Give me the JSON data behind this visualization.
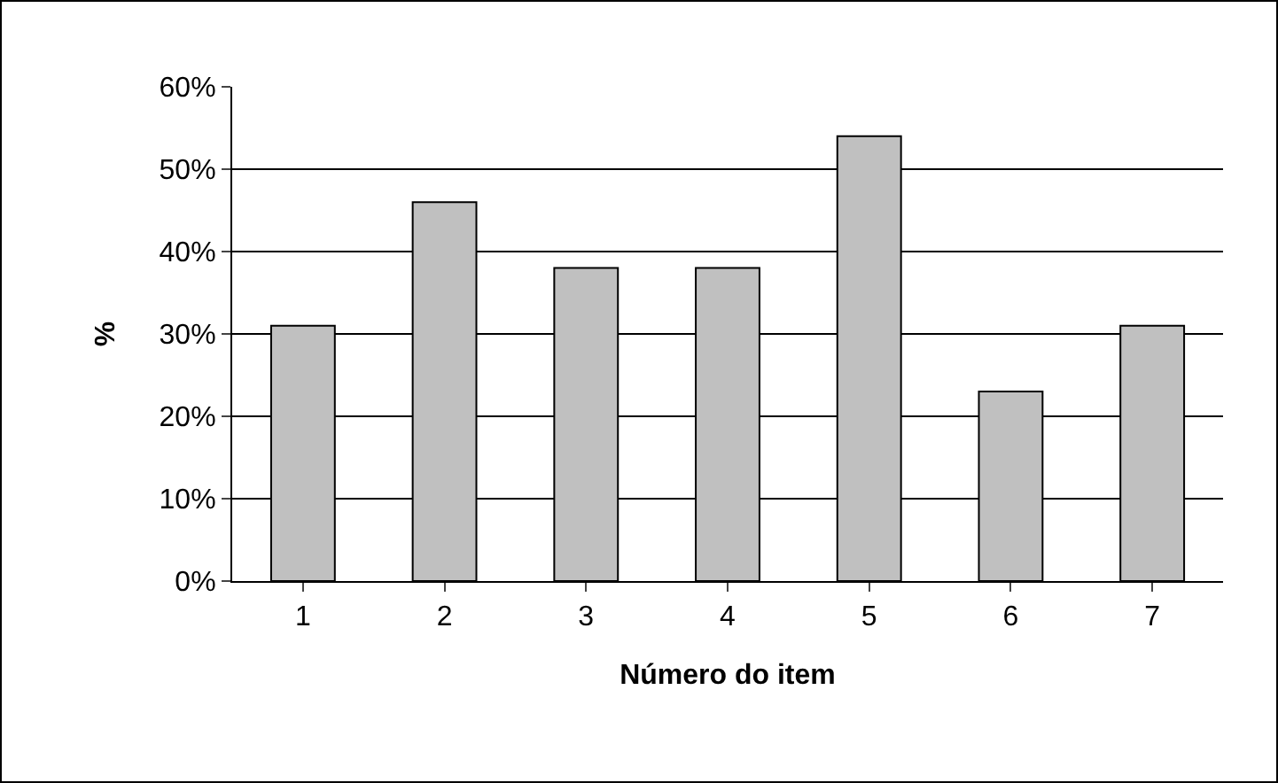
{
  "chart_data": {
    "type": "bar",
    "xlabel": "Número do item",
    "ylabel": "%",
    "categories": [
      "1",
      "2",
      "3",
      "4",
      "5",
      "6",
      "7"
    ],
    "values": [
      31,
      46,
      38,
      38,
      54,
      23,
      31
    ],
    "color": "#c0c0c0",
    "ylim": [
      0,
      60
    ],
    "yticks": [
      {
        "value": 0,
        "label": "0%"
      },
      {
        "value": 10,
        "label": "10%"
      },
      {
        "value": 20,
        "label": "20%"
      },
      {
        "value": 30,
        "label": "30%"
      },
      {
        "value": 40,
        "label": "40%"
      },
      {
        "value": 50,
        "label": "50%"
      },
      {
        "value": 60,
        "label": "60%"
      }
    ],
    "grid": "y",
    "legend": false
  }
}
